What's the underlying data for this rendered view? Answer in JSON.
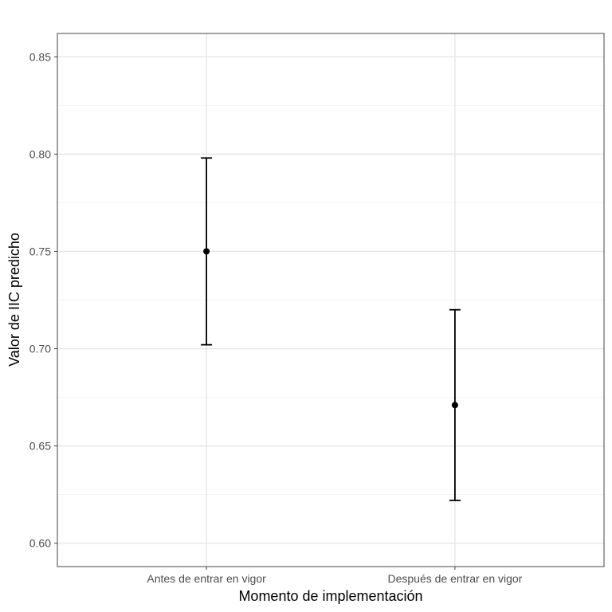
{
  "chart_data": {
    "type": "scatter",
    "title": "",
    "xlabel": "Momento de implementación",
    "ylabel": "Valor de IIC predicho",
    "categories": [
      "Antes de entrar en vigor",
      "Después de entrar en vigor"
    ],
    "values": [
      0.75,
      0.671
    ],
    "ci_lower": [
      0.702,
      0.622
    ],
    "ci_upper": [
      0.798,
      0.72
    ],
    "ylim": [
      0.588,
      0.862
    ],
    "yticks": [
      0.6,
      0.65,
      0.7,
      0.75,
      0.8,
      0.85
    ],
    "ytick_labels": [
      "0.60",
      "0.65",
      "0.70",
      "0.75",
      "0.80",
      "0.85"
    ],
    "grid": true,
    "legend": "none",
    "colors": {
      "point": "#000000",
      "grid": "#e6e6e6",
      "border": "#555555"
    }
  }
}
